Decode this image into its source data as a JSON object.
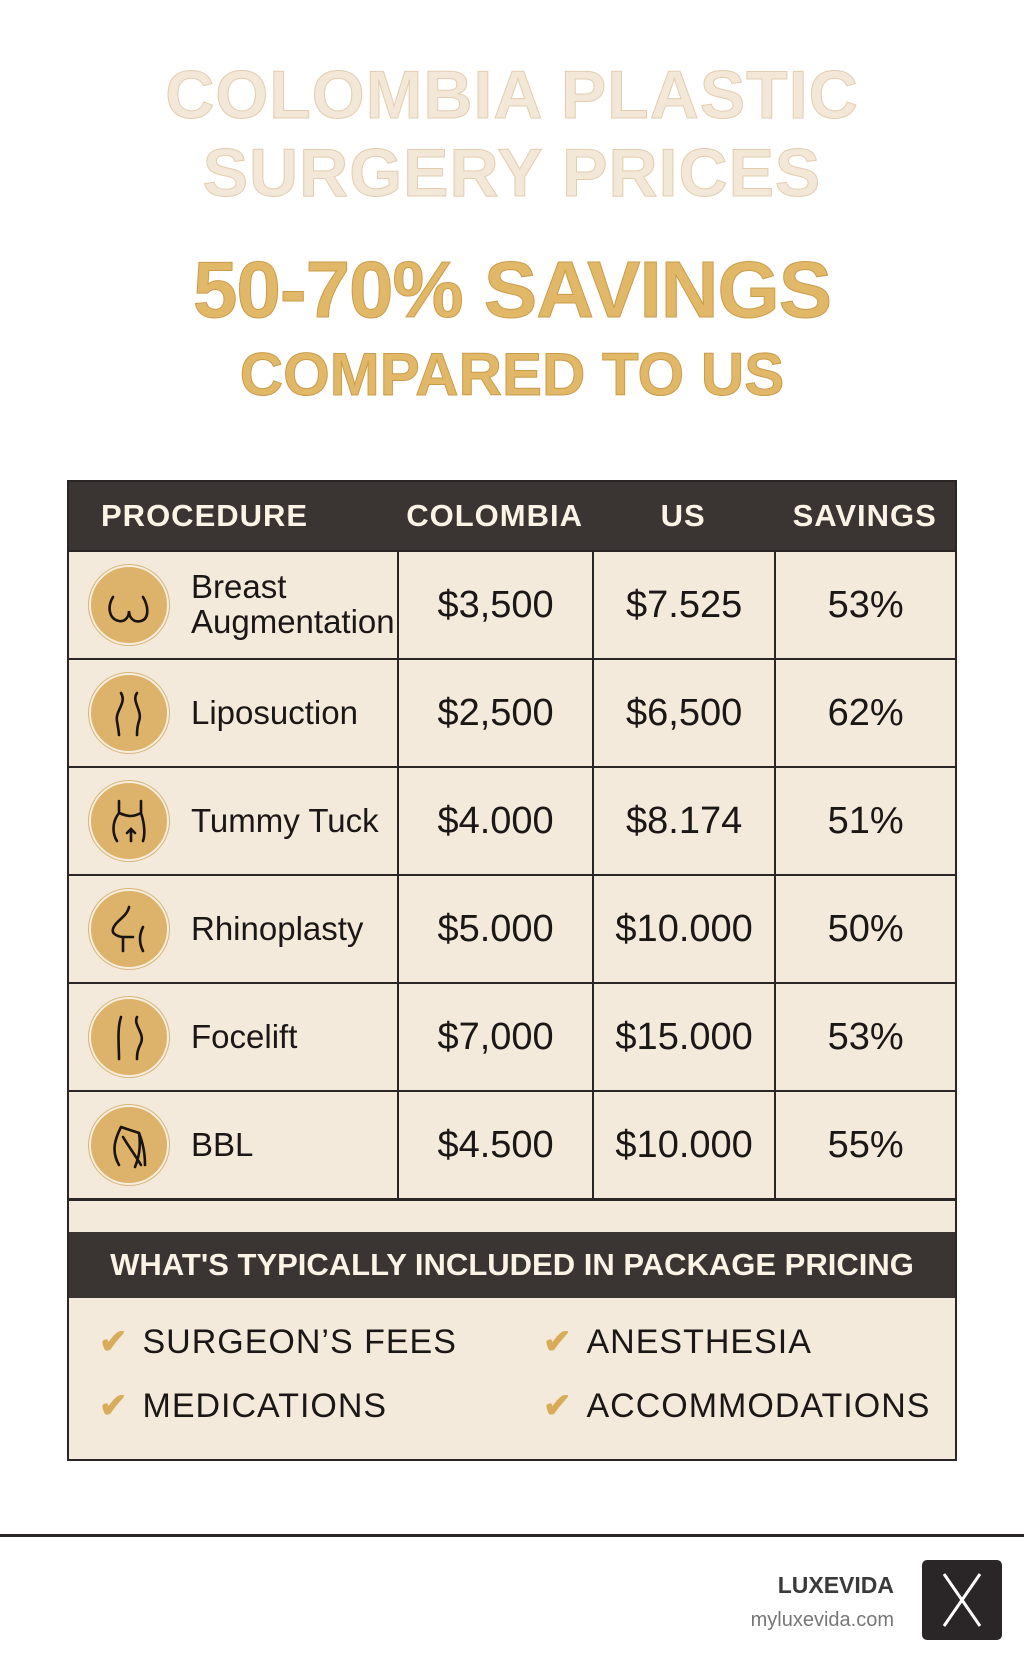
{
  "title": {
    "line1": "COLOMBIA PLASTIC",
    "line2": "SURGERY PRICES"
  },
  "subtitle": {
    "line1": "50-70% SAVINGS",
    "line2": "COMPARED TO US"
  },
  "table": {
    "headers": [
      "PROCEDURE",
      "COLOMBIA",
      "US",
      "SAVINGS"
    ],
    "rows": [
      {
        "procedure": "Breast Augmentation",
        "icon": "breast-icon",
        "colombia": "$3,500",
        "us": "$7.525",
        "savings": "53%"
      },
      {
        "procedure": "Liposuction",
        "icon": "waist-icon",
        "colombia": "$2,500",
        "us": "$6,500",
        "savings": "62%"
      },
      {
        "procedure": "Tummy Tuck",
        "icon": "abdomen-icon",
        "colombia": "$4.000",
        "us": "$8.174",
        "savings": "51%"
      },
      {
        "procedure": "Rhinoplasty",
        "icon": "profile-icon",
        "colombia": "$5.000",
        "us": "$10.000",
        "savings": "50%"
      },
      {
        "procedure": "Focelift",
        "icon": "face-icon",
        "colombia": "$7,000",
        "us": "$15.000",
        "savings": "53%"
      },
      {
        "procedure": "BBL",
        "icon": "buttocks-icon",
        "colombia": "$4.500",
        "us": "$10.000",
        "savings": "55%"
      }
    ]
  },
  "package": {
    "title": "WHAT'S TYPICALLY INCLUDED IN PACKAGE PRICING",
    "items": [
      "SURGEON’S FEES",
      "ANESTHESIA",
      "MEDICATIONS",
      "ACCOMMODATIONS"
    ]
  },
  "footer": {
    "brand": "LUXEVIDA",
    "url": "myluxevida.com",
    "logo_letter": "X"
  },
  "colors": {
    "gold": "#e0b868",
    "dark": "#3a3533",
    "cream": "#f4eadb"
  }
}
